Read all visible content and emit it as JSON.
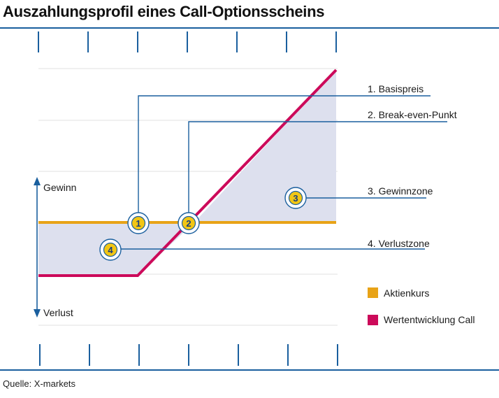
{
  "title": "Auszahlungsprofil eines Call-Optionsscheins",
  "source": "Quelle: X-markets",
  "axis": {
    "gain_label": "Gewinn",
    "loss_label": "Verlust"
  },
  "callouts": [
    {
      "label": "1. Basispreis"
    },
    {
      "label": "2. Break-even-Punkt"
    },
    {
      "label": "3. Gewinnzone"
    },
    {
      "label": "4. Verlustzone"
    }
  ],
  "markers": [
    "1",
    "2",
    "3",
    "4"
  ],
  "legend": [
    {
      "label": "Aktienkurs",
      "color": "#e8a317"
    },
    {
      "label": "Wertentwicklung Call",
      "color": "#cc0a5a"
    }
  ],
  "colors": {
    "frame": "#1a5f9e",
    "zone_fill": "#dde0ee",
    "marker_fill": "#f2c614",
    "grid": "#e6e6e6"
  }
}
